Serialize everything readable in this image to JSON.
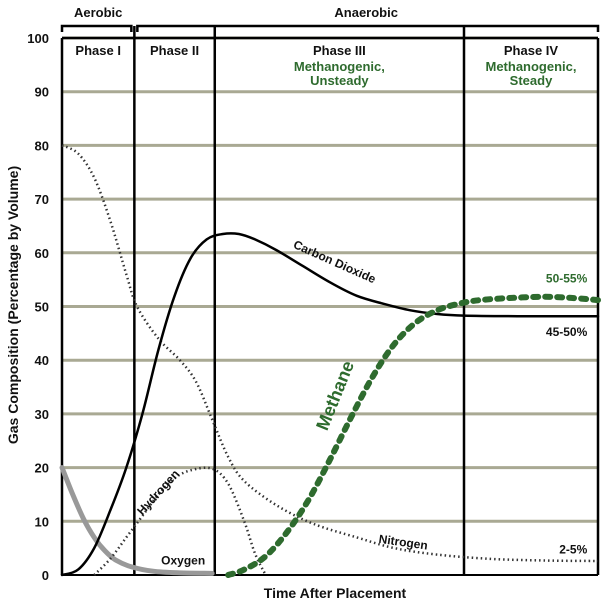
{
  "chart_data": {
    "type": "line",
    "xlabel": "Time After Placement",
    "ylabel": "Gas Composition (Percentage by Volume)",
    "ylim": [
      0,
      100
    ],
    "yticks": [
      0,
      10,
      20,
      30,
      40,
      50,
      60,
      70,
      80,
      90,
      100
    ],
    "grid": true,
    "xlim": [
      0,
      100
    ],
    "top_groups": [
      {
        "label": "Aerobic",
        "start": 0,
        "end": 13.5
      },
      {
        "label": "Anaerobic",
        "start": 13.5,
        "end": 100
      }
    ],
    "phases": [
      {
        "title": "Phase I",
        "subtitle": [],
        "start": 0,
        "end": 13.5
      },
      {
        "title": "Phase II",
        "subtitle": [],
        "start": 13.5,
        "end": 28.5
      },
      {
        "title": "Phase III",
        "subtitle": [
          "Methanogenic,",
          "Unsteady"
        ],
        "start": 28.5,
        "end": 75
      },
      {
        "title": "Phase IV",
        "subtitle": [
          "Methanogenic,",
          "Steady"
        ],
        "start": 75,
        "end": 100
      }
    ],
    "series": [
      {
        "name": "Carbon Dioxide",
        "color": "#000000",
        "style": "solid",
        "points": [
          [
            0,
            0
          ],
          [
            3,
            1
          ],
          [
            6,
            5
          ],
          [
            9,
            12
          ],
          [
            12,
            20
          ],
          [
            15,
            30
          ],
          [
            18,
            42
          ],
          [
            21,
            52
          ],
          [
            24,
            59
          ],
          [
            27,
            62.5
          ],
          [
            30,
            63.5
          ],
          [
            33,
            63.5
          ],
          [
            36,
            62.5
          ],
          [
            40,
            60.5
          ],
          [
            45,
            57.5
          ],
          [
            50,
            54.5
          ],
          [
            55,
            52
          ],
          [
            60,
            50.5
          ],
          [
            65,
            49.3
          ],
          [
            70,
            48.6
          ],
          [
            75,
            48.3
          ],
          [
            85,
            48.2
          ],
          [
            100,
            48.2
          ]
        ]
      },
      {
        "name": "Methane",
        "color": "#2e6b2e",
        "style": "dashed",
        "points": [
          [
            31,
            0
          ],
          [
            34,
            1
          ],
          [
            38,
            3.5
          ],
          [
            42,
            8
          ],
          [
            46,
            14
          ],
          [
            50,
            21.5
          ],
          [
            54,
            29.5
          ],
          [
            58,
            37
          ],
          [
            62,
            43
          ],
          [
            66,
            47
          ],
          [
            70,
            49.3
          ],
          [
            74,
            50.5
          ],
          [
            78,
            51.2
          ],
          [
            84,
            51.6
          ],
          [
            90,
            51.8
          ],
          [
            95,
            51.6
          ],
          [
            100,
            51.2
          ]
        ]
      },
      {
        "name": "Nitrogen",
        "color": "#333333",
        "style": "dotted",
        "points": [
          [
            0,
            80
          ],
          [
            3,
            78.5
          ],
          [
            6,
            74
          ],
          [
            9,
            66
          ],
          [
            12,
            56
          ],
          [
            14,
            50
          ],
          [
            18,
            44
          ],
          [
            22,
            40
          ],
          [
            25,
            36
          ],
          [
            28,
            29
          ],
          [
            31,
            22
          ],
          [
            34,
            17.5
          ],
          [
            40,
            13
          ],
          [
            47,
            9.5
          ],
          [
            55,
            7
          ],
          [
            62,
            5
          ],
          [
            70,
            3.8
          ],
          [
            80,
            3
          ],
          [
            90,
            2.7
          ],
          [
            100,
            2.6
          ]
        ]
      },
      {
        "name": "Hydrogen",
        "color": "#333333",
        "style": "dotted",
        "points": [
          [
            6,
            0
          ],
          [
            9,
            3
          ],
          [
            12,
            7
          ],
          [
            15,
            11
          ],
          [
            18,
            15
          ],
          [
            21,
            18
          ],
          [
            24,
            19.5
          ],
          [
            28,
            19.8
          ],
          [
            31,
            17
          ],
          [
            34,
            10
          ],
          [
            36,
            4
          ],
          [
            38,
            0
          ]
        ]
      },
      {
        "name": "Oxygen",
        "color": "#999999",
        "style": "solid",
        "points": [
          [
            0,
            20
          ],
          [
            2,
            15
          ],
          [
            4,
            10.5
          ],
          [
            6,
            7
          ],
          [
            8,
            4.5
          ],
          [
            10,
            2.8
          ],
          [
            13,
            1.5
          ],
          [
            17,
            0.7
          ],
          [
            22,
            0.4
          ],
          [
            28,
            0.3
          ]
        ]
      }
    ],
    "annotations": [
      {
        "text": "Carbon Dioxide",
        "x": 43,
        "y": 61
      },
      {
        "text": "Methane",
        "x": 52,
        "y": 33
      },
      {
        "text": "Nitrogen",
        "x": 59,
        "y": 6
      },
      {
        "text": "Hydrogen",
        "x": 15,
        "y": 11
      },
      {
        "text": "Oxygen",
        "x": 18.5,
        "y": 2
      },
      {
        "text": "50-55%",
        "x": 98,
        "y": 54.5
      },
      {
        "text": "45-50%",
        "x": 98,
        "y": 44.5
      },
      {
        "text": "2-5%",
        "x": 98,
        "y": 4
      }
    ]
  }
}
